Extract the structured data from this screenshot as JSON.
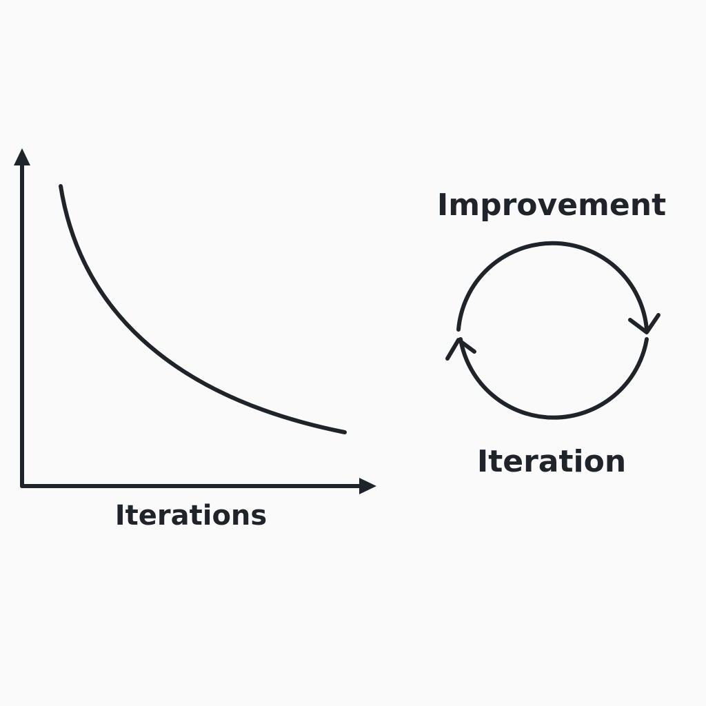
{
  "curve_diagram": {
    "x_axis_label": "Iterations"
  },
  "cycle_diagram": {
    "top_label": "Improvement",
    "bottom_label": "Iteration"
  }
}
